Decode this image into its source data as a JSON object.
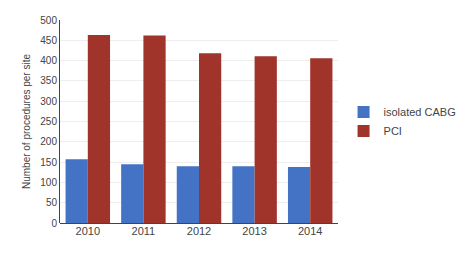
{
  "chart_data": {
    "type": "bar",
    "categories": [
      "2010",
      "2011",
      "2012",
      "2013",
      "2014"
    ],
    "series": [
      {
        "name": "isolated CABG",
        "color": "#4472C4",
        "values": [
          157,
          145,
          140,
          140,
          138
        ]
      },
      {
        "name": "PCI",
        "color": "#A0342A",
        "values": [
          463,
          462,
          418,
          411,
          406
        ]
      }
    ],
    "ylabel": "Number of procedures per site",
    "ylim": [
      0,
      500
    ],
    "yticks": [
      0,
      50,
      100,
      150,
      200,
      250,
      300,
      350,
      400,
      450,
      500
    ],
    "grid": true,
    "legend": "right"
  }
}
